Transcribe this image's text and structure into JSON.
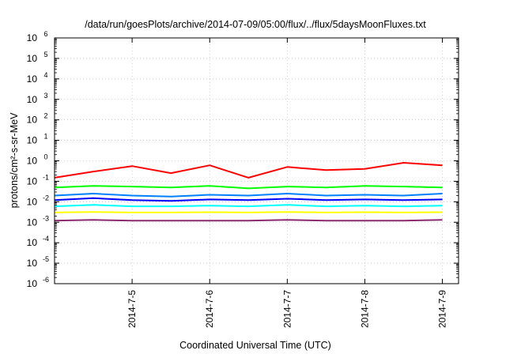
{
  "chart_data": {
    "type": "line",
    "title": "/data/run/goesPlots/archive/2014-07-09/05:00/flux/../flux/5daysMoonFluxes.txt",
    "xlabel": "Coordinated Universal Time (UTC)",
    "ylabel": "protons/cm²-s-sr-MeV",
    "yscale": "log",
    "ylim": [
      1e-06,
      1000000.0
    ],
    "xlim": [
      "2014-07-04",
      "2014-07-09"
    ],
    "x_ticks": [
      "2014-7-5",
      "2014-7-6",
      "2014-7-7",
      "2014-7-8",
      "2014-7-9"
    ],
    "y_ticks": [
      {
        "base": "10",
        "exp": "6"
      },
      {
        "base": "10",
        "exp": "5"
      },
      {
        "base": "10",
        "exp": "4"
      },
      {
        "base": "10",
        "exp": "3"
      },
      {
        "base": "10",
        "exp": "2"
      },
      {
        "base": "10",
        "exp": "1"
      },
      {
        "base": "10",
        "exp": "0"
      },
      {
        "base": "10",
        "exp": "-1"
      },
      {
        "base": "10",
        "exp": "-2"
      },
      {
        "base": "10",
        "exp": "-3"
      },
      {
        "base": "10",
        "exp": "-4"
      },
      {
        "base": "10",
        "exp": "-5"
      },
      {
        "base": "10",
        "exp": "-6"
      }
    ],
    "grid": true,
    "series": [
      {
        "color": "#ff0000",
        "x": [
          "2014-07-04",
          "2014-07-04 12:00",
          "2014-07-05",
          "2014-07-05 12:00",
          "2014-07-06",
          "2014-07-06 12:00",
          "2014-07-07",
          "2014-07-07 12:00",
          "2014-07-08",
          "2014-07-08 12:00",
          "2014-07-09"
        ],
        "values": [
          0.15,
          0.3,
          0.55,
          0.25,
          0.6,
          0.15,
          0.5,
          0.35,
          0.4,
          0.8,
          0.6
        ]
      },
      {
        "color": "#00ff00",
        "x": [
          "2014-07-04",
          "2014-07-04 12:00",
          "2014-07-05",
          "2014-07-05 12:00",
          "2014-07-06",
          "2014-07-06 12:00",
          "2014-07-07",
          "2014-07-07 12:00",
          "2014-07-08",
          "2014-07-08 12:00",
          "2014-07-09"
        ],
        "values": [
          0.05,
          0.06,
          0.055,
          0.05,
          0.06,
          0.045,
          0.055,
          0.05,
          0.06,
          0.055,
          0.05
        ]
      },
      {
        "color": "#0080ff",
        "x": [
          "2014-07-04",
          "2014-07-04 12:00",
          "2014-07-05",
          "2014-07-05 12:00",
          "2014-07-06",
          "2014-07-06 12:00",
          "2014-07-07",
          "2014-07-07 12:00",
          "2014-07-08",
          "2014-07-08 12:00",
          "2014-07-09"
        ],
        "values": [
          0.02,
          0.025,
          0.02,
          0.018,
          0.022,
          0.02,
          0.025,
          0.02,
          0.022,
          0.02,
          0.025
        ]
      },
      {
        "color": "#0000ff",
        "x": [
          "2014-07-04",
          "2014-07-04 12:00",
          "2014-07-05",
          "2014-07-05 12:00",
          "2014-07-06",
          "2014-07-06 12:00",
          "2014-07-07",
          "2014-07-07 12:00",
          "2014-07-08",
          "2014-07-08 12:00",
          "2014-07-09"
        ],
        "values": [
          0.012,
          0.015,
          0.012,
          0.011,
          0.013,
          0.012,
          0.014,
          0.012,
          0.013,
          0.012,
          0.013
        ]
      },
      {
        "color": "#00ffff",
        "x": [
          "2014-07-04",
          "2014-07-04 12:00",
          "2014-07-05",
          "2014-07-05 12:00",
          "2014-07-06",
          "2014-07-06 12:00",
          "2014-07-07",
          "2014-07-07 12:00",
          "2014-07-08",
          "2014-07-08 12:00",
          "2014-07-09"
        ],
        "values": [
          0.006,
          0.007,
          0.006,
          0.006,
          0.0065,
          0.006,
          0.007,
          0.006,
          0.0065,
          0.006,
          0.0065
        ]
      },
      {
        "color": "#ffff00",
        "x": [
          "2014-07-04",
          "2014-07-04 12:00",
          "2014-07-05",
          "2014-07-05 12:00",
          "2014-07-06",
          "2014-07-06 12:00",
          "2014-07-07",
          "2014-07-07 12:00",
          "2014-07-08",
          "2014-07-08 12:00",
          "2014-07-09"
        ],
        "values": [
          0.003,
          0.0032,
          0.003,
          0.003,
          0.0031,
          0.003,
          0.0032,
          0.003,
          0.0031,
          0.003,
          0.0031
        ]
      },
      {
        "color": "#8b2a6e",
        "x": [
          "2014-07-04",
          "2014-07-04 12:00",
          "2014-07-05",
          "2014-07-05 12:00",
          "2014-07-06",
          "2014-07-06 12:00",
          "2014-07-07",
          "2014-07-07 12:00",
          "2014-07-08",
          "2014-07-08 12:00",
          "2014-07-09"
        ],
        "values": [
          0.0012,
          0.0013,
          0.0012,
          0.0012,
          0.0012,
          0.0012,
          0.0013,
          0.0012,
          0.0012,
          0.0012,
          0.0013
        ]
      }
    ]
  }
}
